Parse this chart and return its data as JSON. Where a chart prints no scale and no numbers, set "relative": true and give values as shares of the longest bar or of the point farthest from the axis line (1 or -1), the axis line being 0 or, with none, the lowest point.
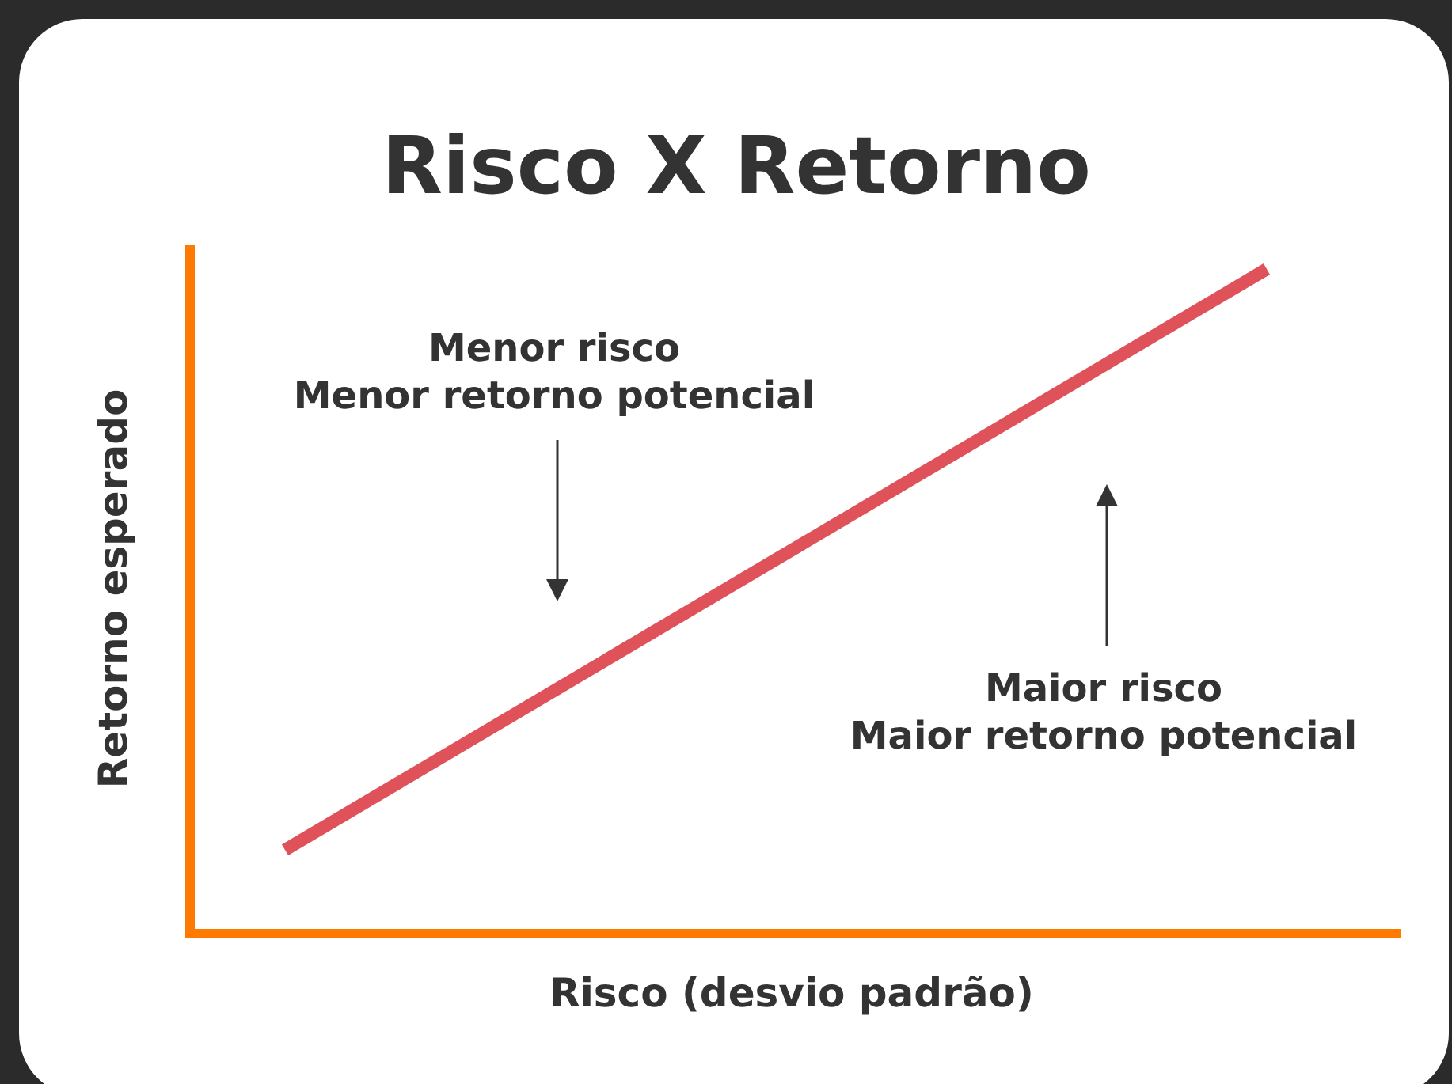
{
  "chart_data": {
    "type": "line",
    "title": "Risco X Retorno",
    "xlabel": "Risco (desvio padrão)",
    "ylabel": "Retorno esperado",
    "relative": true,
    "categories": [
      null,
      null
    ],
    "series": [
      {
        "color": "#e0525a",
        "values": [
          0.126,
          1
        ]
      }
    ],
    "annotations": [
      "Menor risco\nMenor retorno potencial",
      "Maior risco\nMaior retorno potencial"
    ],
    "marker": "none",
    "line_style": "solid"
  }
}
